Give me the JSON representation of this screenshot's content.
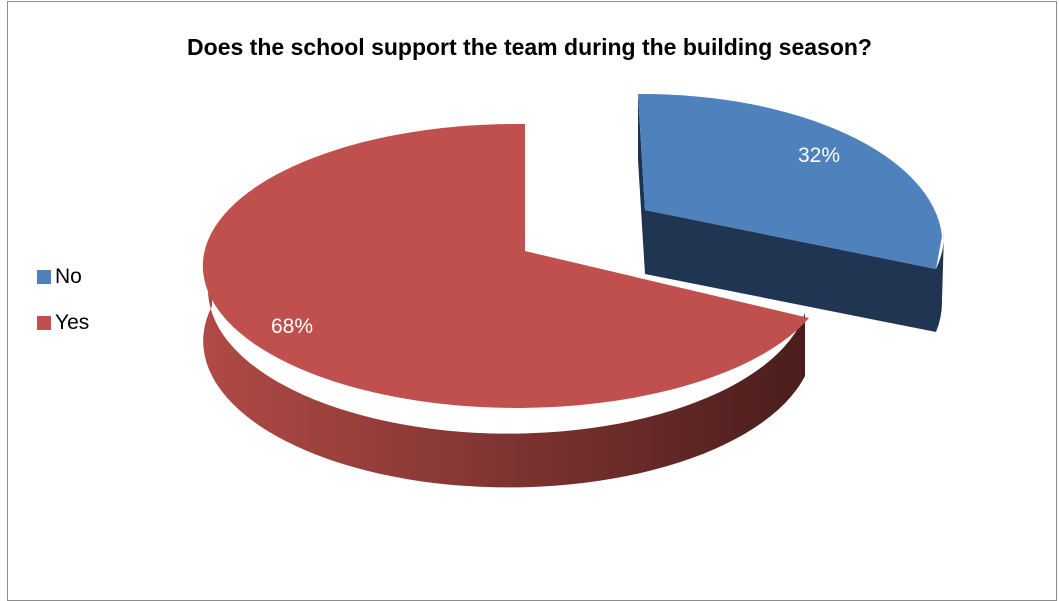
{
  "chart_data": {
    "type": "pie",
    "title": "Does the school support the team during the building season?",
    "categories": [
      "No",
      "Yes"
    ],
    "values": [
      32,
      68
    ],
    "data_labels": [
      "32%",
      "68%"
    ],
    "exploded": [
      "No"
    ],
    "style": "3d",
    "legend": "left",
    "colors": {
      "No": "#4f81bd",
      "Yes": "#c0504d"
    }
  }
}
